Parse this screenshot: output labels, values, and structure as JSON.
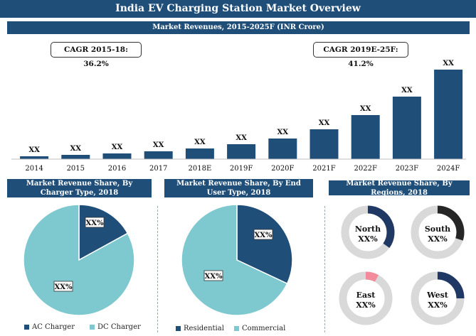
{
  "title": "India EV Charging Station Market Overview",
  "colors": {
    "header": "#1f4e79",
    "bar": "#1f4e79",
    "pie_teal": "#7ec8cf",
    "donut_gray": "#d9d9d9"
  },
  "revenue": {
    "title": "Market Revenues, 2015-2025F (INR Crore)",
    "cagr_left": "CAGR 2015-18: 36.2%",
    "cagr_right": "CAGR 2019E-25F: 41.2%"
  },
  "chart_data": [
    {
      "type": "bar",
      "title": "Market Revenues, 2015-2025F (INR Crore)",
      "categories": [
        "2014",
        "2015",
        "2016",
        "2017",
        "2018E",
        "2019F",
        "2020F",
        "2021F",
        "2022F",
        "2023F",
        "2024F"
      ],
      "values": [
        4,
        6,
        8,
        11,
        15,
        21,
        29,
        42,
        62,
        88,
        126
      ],
      "data_labels": [
        "XX",
        "XX",
        "XX",
        "XX",
        "XX",
        "XX",
        "XX",
        "XX",
        "XX",
        "XX",
        "XX"
      ],
      "ylim": [
        0,
        130
      ],
      "grid": false,
      "color": "#1f4e79"
    },
    {
      "type": "pie",
      "title": "Market Revenue Share, By  Charger Type, 2018",
      "labels": [
        "AC Charger",
        "DC Charger"
      ],
      "values": [
        17,
        83
      ],
      "slice_labels": [
        "XX%",
        "XX%"
      ],
      "colors": [
        "#1f4e79",
        "#7ec8cf"
      ],
      "legend": "bottom"
    },
    {
      "type": "pie",
      "title": "Market Revenue Share, By End User Type, 2018",
      "labels": [
        "Residential",
        "Commercial"
      ],
      "values": [
        32,
        68
      ],
      "slice_labels": [
        "XX%",
        "XX%"
      ],
      "colors": [
        "#1f4e79",
        "#7ec8cf"
      ],
      "legend": "bottom"
    },
    {
      "type": "pie",
      "title": "Market Revenue Share, By Regions, 2018",
      "donuts": [
        {
          "name": "North",
          "label": "XX%",
          "value": 35,
          "color": "#1f3864"
        },
        {
          "name": "South",
          "label": "XX%",
          "value": 30,
          "color": "#262626"
        },
        {
          "name": "East",
          "label": "XX%",
          "value": 8,
          "color": "#f28b9a"
        },
        {
          "name": "West",
          "label": "XX%",
          "value": 25,
          "color": "#1f3864"
        }
      ]
    }
  ]
}
